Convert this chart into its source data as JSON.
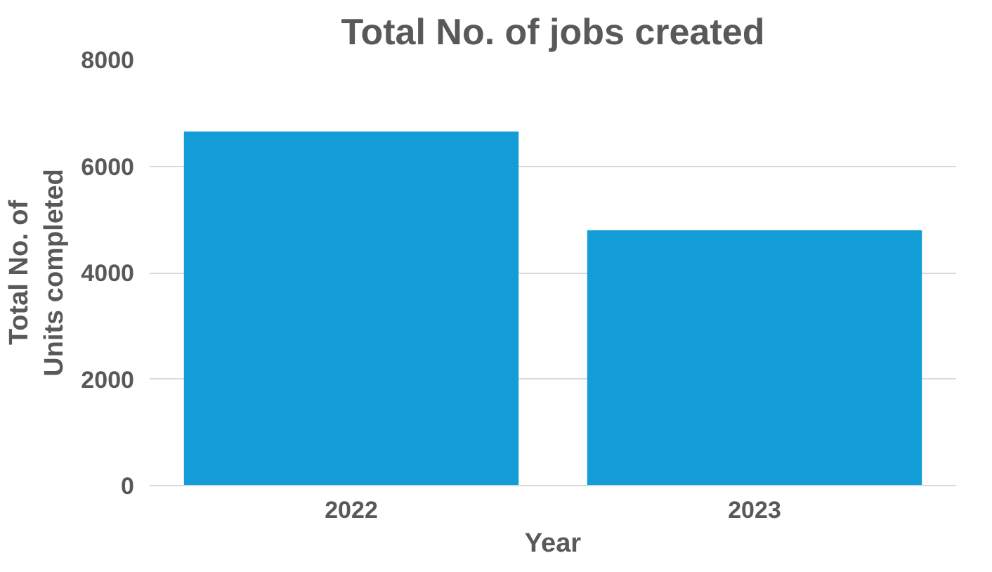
{
  "chart_data": {
    "type": "bar",
    "title": "Total No. of jobs created",
    "xlabel": "Year",
    "ylabel": "Total No. of Units completed",
    "categories": [
      "2022",
      "2023"
    ],
    "values": [
      6650,
      4800
    ],
    "color": "#139dd6",
    "ylim": [
      0,
      8000
    ],
    "yticks": [
      0,
      2000,
      4000,
      6000,
      8000
    ],
    "grid": "y"
  }
}
